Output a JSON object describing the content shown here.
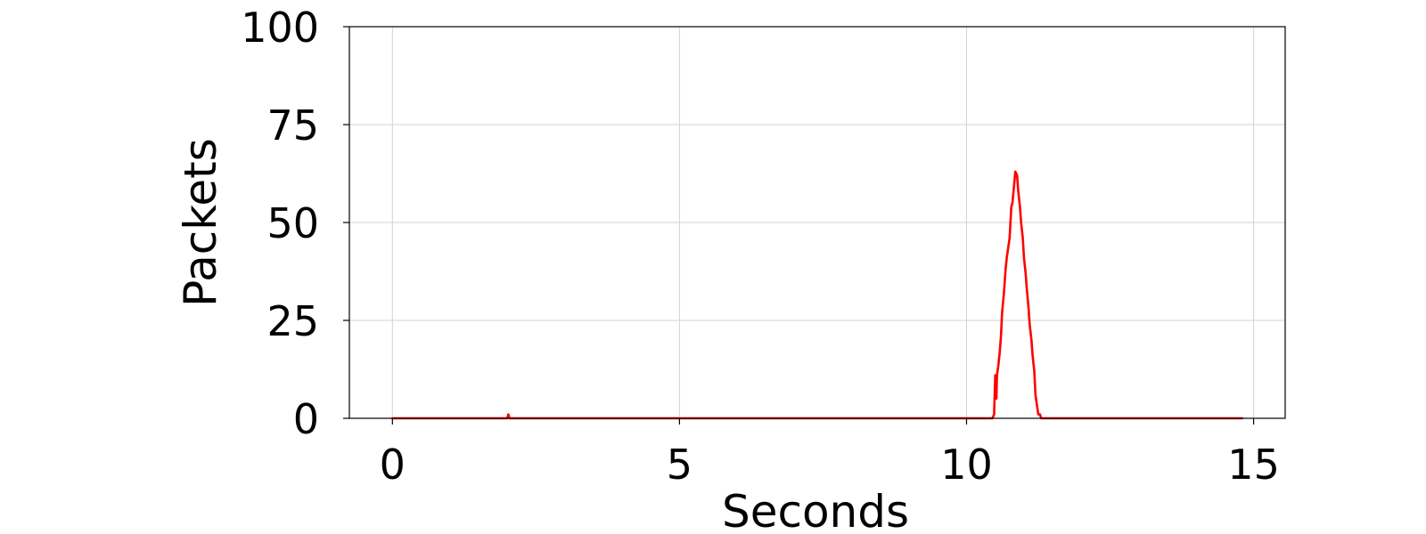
{
  "chart_data": {
    "type": "line",
    "title": "",
    "xlabel": "Seconds",
    "ylabel": "Packets",
    "xlim": [
      -0.75,
      15.55
    ],
    "ylim": [
      0,
      100
    ],
    "x_ticks": [
      0,
      5,
      10,
      15
    ],
    "y_ticks": [
      0,
      25,
      50,
      75,
      100
    ],
    "x_tick_labels": [
      "0",
      "5",
      "10",
      "15"
    ],
    "y_tick_labels": [
      "0",
      "25",
      "50",
      "75",
      "100"
    ],
    "grid": true,
    "legend": "none",
    "series": [
      {
        "color": "#ff0000",
        "points": [
          [
            0.0,
            0
          ],
          [
            2.0,
            0
          ],
          [
            2.02,
            1
          ],
          [
            2.04,
            0
          ],
          [
            10.45,
            0
          ],
          [
            10.48,
            1
          ],
          [
            10.5,
            11
          ],
          [
            10.52,
            5
          ],
          [
            10.53,
            11
          ],
          [
            10.55,
            13
          ],
          [
            10.58,
            17
          ],
          [
            10.6,
            21
          ],
          [
            10.62,
            27
          ],
          [
            10.65,
            32
          ],
          [
            10.68,
            38
          ],
          [
            10.7,
            41
          ],
          [
            10.73,
            44
          ],
          [
            10.75,
            46
          ],
          [
            10.78,
            54
          ],
          [
            10.8,
            55
          ],
          [
            10.83,
            60
          ],
          [
            10.85,
            63
          ],
          [
            10.88,
            62
          ],
          [
            10.9,
            58
          ],
          [
            10.93,
            54
          ],
          [
            10.95,
            50
          ],
          [
            10.98,
            46
          ],
          [
            11.0,
            41
          ],
          [
            11.03,
            37
          ],
          [
            11.05,
            33
          ],
          [
            11.08,
            28
          ],
          [
            11.1,
            24
          ],
          [
            11.13,
            20
          ],
          [
            11.15,
            16
          ],
          [
            11.18,
            12
          ],
          [
            11.2,
            6
          ],
          [
            11.23,
            3
          ],
          [
            11.25,
            1
          ],
          [
            11.28,
            1
          ],
          [
            11.3,
            0
          ],
          [
            14.8,
            0
          ]
        ]
      }
    ]
  }
}
